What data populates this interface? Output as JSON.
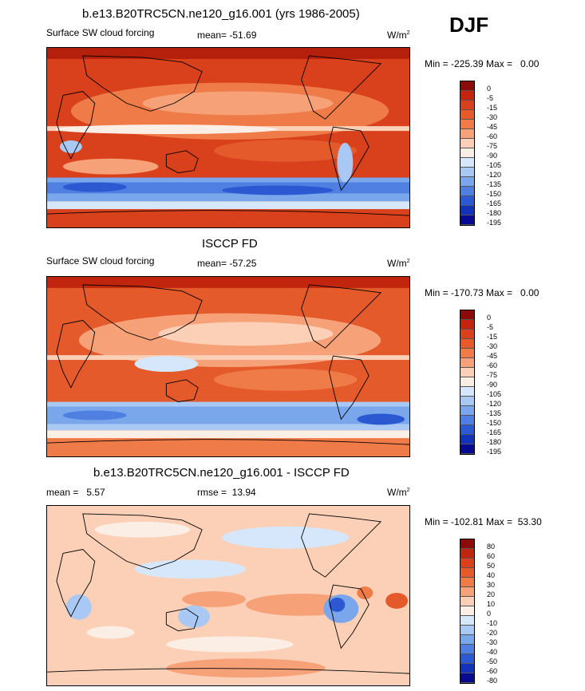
{
  "season": "DJF",
  "panels": [
    {
      "title": "b.e13.B20TRC5CN.ne120_g16.001 (yrs 1986-2005)",
      "left_label": "Surface SW cloud forcing",
      "center_label": "mean= -51.69",
      "units": "W/m",
      "units_sup": "2",
      "minmax": "Min = -225.39 Max =   0.00",
      "scale": [
        "0",
        "-5",
        "-15",
        "-30",
        "-45",
        "-60",
        "-75",
        "-90",
        "-105",
        "-120",
        "-135",
        "-150",
        "-165",
        "-180",
        "-195"
      ],
      "colors": [
        "#8b0a0a",
        "#c1250e",
        "#d9401c",
        "#e45a2b",
        "#ef7b48",
        "#f6a178",
        "#fcd0b6",
        "#fbeee4",
        "#d6e6fb",
        "#a9c9f4",
        "#7aa6ec",
        "#4f7fe0",
        "#2c58d2",
        "#1232b8",
        "#060a8e"
      ]
    },
    {
      "title": "ISCCP FD",
      "left_label": "Surface SW cloud forcing",
      "center_label": "mean= -57.25",
      "units": "W/m",
      "units_sup": "2",
      "minmax": "Min = -170.73 Max =   0.00",
      "scale": [
        "0",
        "-5",
        "-15",
        "-30",
        "-45",
        "-60",
        "-75",
        "-90",
        "-105",
        "-120",
        "-135",
        "-150",
        "-165",
        "-180",
        "-195"
      ],
      "colors": [
        "#8b0a0a",
        "#c1250e",
        "#d9401c",
        "#e45a2b",
        "#ef7b48",
        "#f6a178",
        "#fcd0b6",
        "#fbeee4",
        "#d6e6fb",
        "#a9c9f4",
        "#7aa6ec",
        "#4f7fe0",
        "#2c58d2",
        "#1232b8",
        "#060a8e"
      ]
    },
    {
      "title": "b.e13.B20TRC5CN.ne120_g16.001 - ISCCP FD",
      "left_label": "mean =   5.57",
      "center_label": "rmse =  13.94",
      "units": "W/m",
      "units_sup": "2",
      "minmax": "Min = -102.81 Max =  53.30",
      "scale": [
        "80",
        "60",
        "50",
        "40",
        "30",
        "20",
        "10",
        "0",
        "-10",
        "-20",
        "-30",
        "-40",
        "-50",
        "-60",
        "-80"
      ],
      "colors": [
        "#8b0a0a",
        "#c1250e",
        "#d9401c",
        "#e45a2b",
        "#ef7b48",
        "#f6a178",
        "#fcd0b6",
        "#fbeee4",
        "#d6e6fb",
        "#a9c9f4",
        "#7aa6ec",
        "#4f7fe0",
        "#2c58d2",
        "#1232b8",
        "#060a8e"
      ]
    }
  ]
}
